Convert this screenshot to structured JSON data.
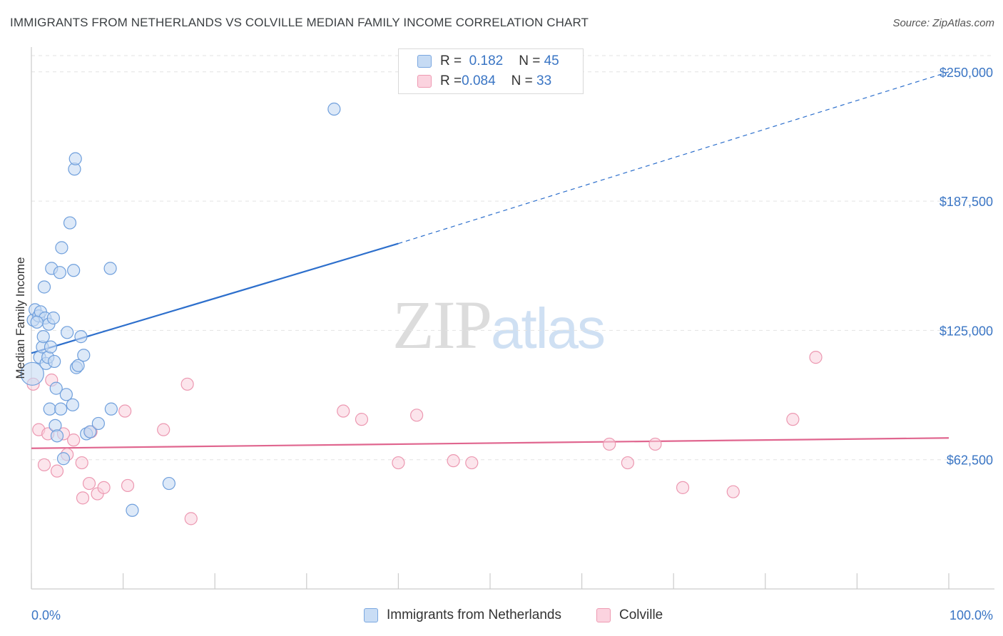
{
  "header": {
    "title": "IMMIGRANTS FROM NETHERLANDS VS COLVILLE MEDIAN FAMILY INCOME CORRELATION CHART",
    "source": "Source: ZipAtlas.com"
  },
  "watermark": {
    "zip": "ZIP",
    "atlas": "atlas"
  },
  "legend": {
    "rows": [
      {
        "r_label": "R = ",
        "r_value": "0.182",
        "n_label": "N = ",
        "n_value": "45",
        "color": "#a8c8ef",
        "border": "#7aa7e0"
      },
      {
        "r_label": "R = ",
        "r_value": "0.084",
        "n_label": "N = ",
        "n_value": "33",
        "color": "#f7c0d0",
        "border": "#ee9ab2"
      }
    ]
  },
  "bottom_legend": [
    {
      "label": "Immigrants from Netherlands",
      "color": "#c9ddf5",
      "border": "#7aa7e0"
    },
    {
      "label": "Colville",
      "color": "#fbd3df",
      "border": "#ee9ab2"
    }
  ],
  "colors": {
    "blue": "#2d6fcc",
    "blue_fill": "#c6dbf4",
    "blue_stroke": "#6f9fdc",
    "pink": "#e0668f",
    "pink_fill": "#fad0dc",
    "pink_stroke": "#ec98b1",
    "grid": "#e3e3e3"
  },
  "chart_data": {
    "type": "scatter",
    "ylabel": "Median Family Income",
    "xlabel": "",
    "x_tick_labels": [
      "0.0%",
      "100.0%"
    ],
    "y_tick_labels": [
      "$62,500",
      "$125,000",
      "$187,500",
      "$250,000"
    ],
    "y_ticks": [
      62500,
      125000,
      187500,
      250000
    ],
    "xlim": [
      0,
      100
    ],
    "ylim": [
      0,
      262000
    ],
    "grid": true,
    "legend_position": "top-center",
    "series": [
      {
        "name": "Immigrants from Netherlands",
        "points": [
          [
            0.1,
            104000
          ],
          [
            0.2,
            130000
          ],
          [
            0.4,
            135000
          ],
          [
            0.8,
            132000
          ],
          [
            0.9,
            112000
          ],
          [
            1.0,
            134000
          ],
          [
            1.2,
            117000
          ],
          [
            1.4,
            146000
          ],
          [
            1.5,
            131000
          ],
          [
            1.6,
            109000
          ],
          [
            1.8,
            112000
          ],
          [
            1.9,
            128000
          ],
          [
            2.0,
            87000
          ],
          [
            2.1,
            117000
          ],
          [
            2.2,
            155000
          ],
          [
            2.4,
            131000
          ],
          [
            2.5,
            110000
          ],
          [
            2.6,
            79000
          ],
          [
            2.7,
            97000
          ],
          [
            2.8,
            74000
          ],
          [
            3.1,
            153000
          ],
          [
            3.2,
            87000
          ],
          [
            3.3,
            165000
          ],
          [
            3.5,
            63000
          ],
          [
            3.8,
            94000
          ],
          [
            3.9,
            124000
          ],
          [
            4.2,
            177000
          ],
          [
            4.5,
            89000
          ],
          [
            4.6,
            154000
          ],
          [
            4.7,
            203000
          ],
          [
            4.8,
            208000
          ],
          [
            4.9,
            107000
          ],
          [
            5.1,
            108000
          ],
          [
            5.4,
            122000
          ],
          [
            5.7,
            113000
          ],
          [
            6.0,
            75000
          ],
          [
            6.4,
            76000
          ],
          [
            7.3,
            80000
          ],
          [
            8.6,
            155000
          ],
          [
            8.7,
            87000
          ],
          [
            11.0,
            38000
          ],
          [
            15.0,
            51000
          ],
          [
            33.0,
            232000
          ],
          [
            0.6,
            129000
          ],
          [
            1.3,
            122000
          ]
        ],
        "trend": {
          "x0": 0,
          "y0": 114000,
          "x1": 40,
          "y1": 167000,
          "dashed_to_x": 100,
          "dashed_to_y": 250000
        }
      },
      {
        "name": "Colville",
        "points": [
          [
            0.2,
            99000
          ],
          [
            0.8,
            77000
          ],
          [
            1.4,
            60000
          ],
          [
            1.8,
            75000
          ],
          [
            2.2,
            101000
          ],
          [
            2.8,
            57000
          ],
          [
            3.5,
            75000
          ],
          [
            3.9,
            65000
          ],
          [
            4.6,
            72000
          ],
          [
            5.5,
            61000
          ],
          [
            5.6,
            44000
          ],
          [
            6.3,
            51000
          ],
          [
            6.5,
            76000
          ],
          [
            7.2,
            46000
          ],
          [
            7.9,
            49000
          ],
          [
            10.2,
            86000
          ],
          [
            10.5,
            50000
          ],
          [
            14.4,
            77000
          ],
          [
            17.0,
            99000
          ],
          [
            17.4,
            34000
          ],
          [
            34.0,
            86000
          ],
          [
            36.0,
            82000
          ],
          [
            40.0,
            61000
          ],
          [
            42.0,
            84000
          ],
          [
            46.0,
            62000
          ],
          [
            48.0,
            61000
          ],
          [
            63.0,
            70000
          ],
          [
            65.0,
            61000
          ],
          [
            68.0,
            70000
          ],
          [
            71.0,
            49000
          ],
          [
            76.5,
            47000
          ],
          [
            83.0,
            82000
          ],
          [
            85.5,
            112000
          ]
        ],
        "trend": {
          "x0": 0,
          "y0": 68000,
          "x1": 100,
          "y1": 73000
        }
      }
    ]
  }
}
